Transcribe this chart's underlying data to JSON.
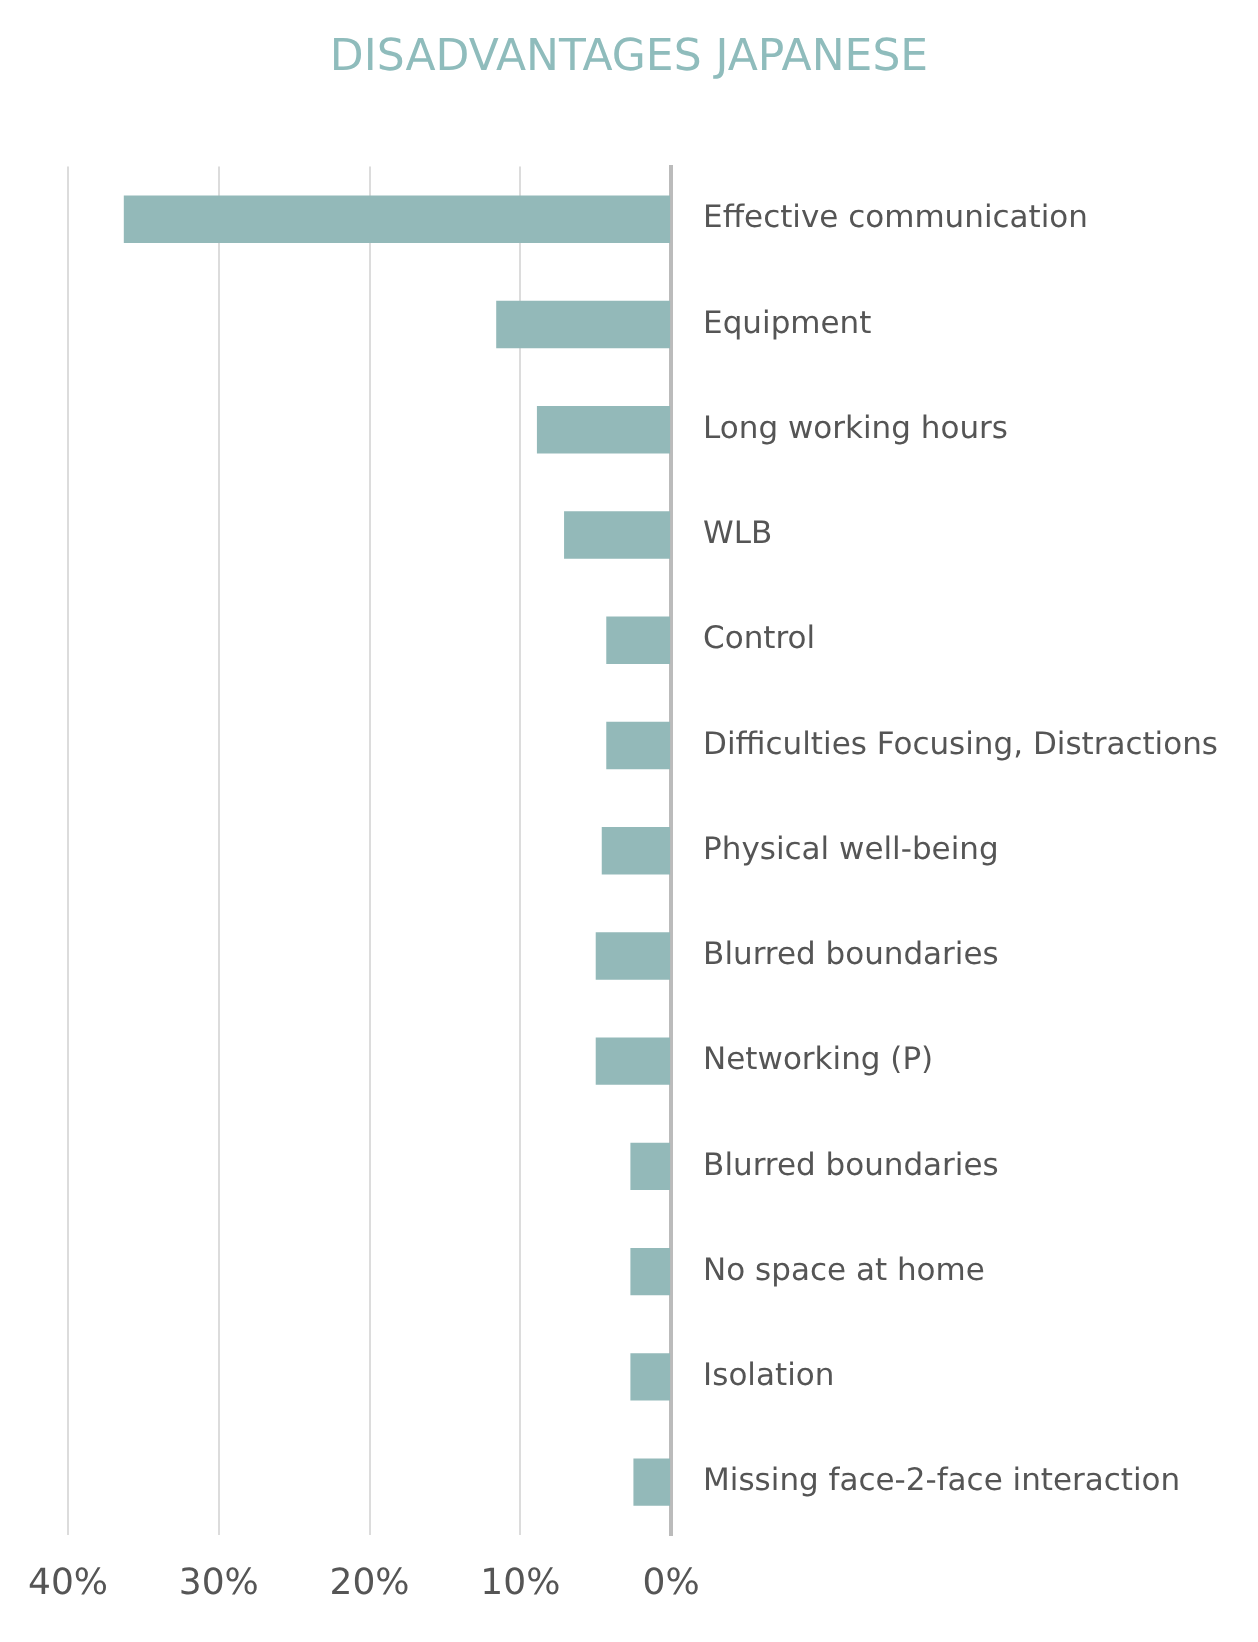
{
  "chart_data": {
    "type": "bar",
    "orientation": "horizontal",
    "title": "DISADVANTAGES JAPANESE",
    "categories": [
      "Effective communication",
      "Equipment",
      "Long working hours",
      "WLB",
      "Control",
      "Difficulties Focusing, Distractions",
      "Physical well-being",
      "Blurred boundaries",
      "Networking (P)",
      "Blurred boundaries",
      "No space at home",
      "Isolation",
      "Missing face-2-face interaction"
    ],
    "values": [
      36.3,
      11.6,
      8.9,
      7.1,
      4.3,
      4.3,
      4.6,
      5.0,
      5.0,
      2.7,
      2.7,
      2.7,
      2.5
    ],
    "color": "#93b9b9",
    "xlim": [
      40,
      0
    ],
    "xticks": [
      {
        "value": 40,
        "label": "40%"
      },
      {
        "value": 30,
        "label": "30%"
      },
      {
        "value": 20,
        "label": "20%"
      },
      {
        "value": 10,
        "label": "10%"
      },
      {
        "value": 0,
        "label": "0%"
      }
    ],
    "grid": "x",
    "legend": false
  }
}
